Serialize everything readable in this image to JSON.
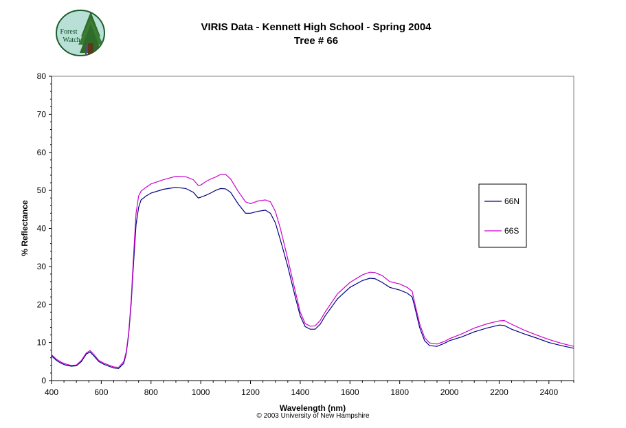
{
  "logo": {
    "text_line1": "Forest",
    "text_line2": "Watch"
  },
  "chart_data": {
    "type": "line",
    "title": "VIRIS Data - Kennett High School - Spring 2004",
    "subtitle": "Tree # 66",
    "xlabel": "Wavelength (nm)",
    "ylabel": "% Reflectance",
    "xlim": [
      400,
      2500
    ],
    "ylim": [
      0,
      80
    ],
    "xticks": [
      400,
      600,
      800,
      1000,
      1200,
      1400,
      1600,
      1800,
      2000,
      2200,
      2400
    ],
    "yticks": [
      0,
      10,
      20,
      30,
      40,
      50,
      60,
      70,
      80
    ],
    "grid": false,
    "legend_position": "right",
    "series": [
      {
        "name": "66N",
        "color": "#000080",
        "x": [
          400,
          420,
          440,
          460,
          480,
          500,
          520,
          540,
          555,
          570,
          590,
          610,
          630,
          650,
          670,
          690,
          700,
          710,
          720,
          730,
          740,
          750,
          760,
          780,
          800,
          850,
          900,
          940,
          970,
          990,
          1000,
          1020,
          1040,
          1060,
          1080,
          1100,
          1120,
          1150,
          1180,
          1200,
          1230,
          1260,
          1280,
          1300,
          1320,
          1350,
          1380,
          1400,
          1420,
          1440,
          1460,
          1480,
          1500,
          1550,
          1600,
          1650,
          1680,
          1700,
          1730,
          1760,
          1800,
          1830,
          1850,
          1860,
          1880,
          1900,
          1920,
          1950,
          1980,
          2000,
          2050,
          2100,
          2150,
          2200,
          2220,
          2250,
          2300,
          2350,
          2400,
          2450,
          2500
        ],
        "y": [
          6.5,
          5.3,
          4.5,
          4.0,
          3.8,
          3.9,
          5.0,
          7.0,
          7.5,
          6.5,
          5.0,
          4.3,
          3.8,
          3.3,
          3.2,
          4.5,
          7.0,
          12.0,
          20.0,
          31.0,
          41.0,
          45.5,
          47.5,
          48.5,
          49.3,
          50.3,
          50.8,
          50.5,
          49.5,
          48.0,
          48.2,
          48.7,
          49.3,
          50.0,
          50.5,
          50.4,
          49.5,
          46.5,
          44.0,
          44.0,
          44.5,
          44.8,
          44.0,
          41.5,
          37.0,
          30.0,
          22.0,
          17.0,
          14.2,
          13.5,
          13.5,
          14.8,
          17.0,
          21.5,
          24.5,
          26.3,
          26.9,
          26.8,
          25.8,
          24.5,
          23.8,
          23.0,
          22.0,
          19.5,
          14.0,
          10.5,
          9.2,
          9.0,
          9.8,
          10.5,
          11.5,
          12.8,
          13.8,
          14.6,
          14.5,
          13.5,
          12.3,
          11.2,
          10.0,
          9.2,
          8.5
        ]
      },
      {
        "name": "66S",
        "color": "#cc00cc",
        "x": [
          400,
          420,
          440,
          460,
          480,
          500,
          520,
          540,
          555,
          570,
          590,
          610,
          630,
          650,
          670,
          690,
          700,
          710,
          720,
          730,
          740,
          750,
          760,
          780,
          800,
          850,
          900,
          940,
          970,
          990,
          1000,
          1020,
          1040,
          1060,
          1080,
          1100,
          1120,
          1150,
          1180,
          1200,
          1230,
          1260,
          1280,
          1300,
          1320,
          1350,
          1380,
          1400,
          1420,
          1440,
          1460,
          1480,
          1500,
          1550,
          1600,
          1650,
          1680,
          1700,
          1730,
          1760,
          1800,
          1830,
          1850,
          1860,
          1880,
          1900,
          1920,
          1950,
          1980,
          2000,
          2050,
          2100,
          2150,
          2200,
          2220,
          2250,
          2300,
          2350,
          2400,
          2450,
          2500
        ],
        "y": [
          6.8,
          5.6,
          4.8,
          4.3,
          4.0,
          4.1,
          5.3,
          7.3,
          7.9,
          6.9,
          5.3,
          4.6,
          4.1,
          3.6,
          3.5,
          5.0,
          7.5,
          12.5,
          21.0,
          33.0,
          44.0,
          48.5,
          49.8,
          50.8,
          51.7,
          52.8,
          53.7,
          53.6,
          52.8,
          51.3,
          51.4,
          52.3,
          53.0,
          53.5,
          54.2,
          54.2,
          53.0,
          49.8,
          47.0,
          46.5,
          47.2,
          47.5,
          47.0,
          44.5,
          40.0,
          32.0,
          23.5,
          18.0,
          15.0,
          14.3,
          14.4,
          15.8,
          18.0,
          22.8,
          25.8,
          27.8,
          28.5,
          28.4,
          27.6,
          26.0,
          25.4,
          24.5,
          23.5,
          20.5,
          15.0,
          11.3,
          9.9,
          9.6,
          10.3,
          11.0,
          12.3,
          13.8,
          14.9,
          15.7,
          15.8,
          14.8,
          13.3,
          12.0,
          10.8,
          9.8,
          9.0
        ]
      }
    ]
  },
  "footer": {
    "copyright": "© 2003 University of New Hampshire"
  }
}
